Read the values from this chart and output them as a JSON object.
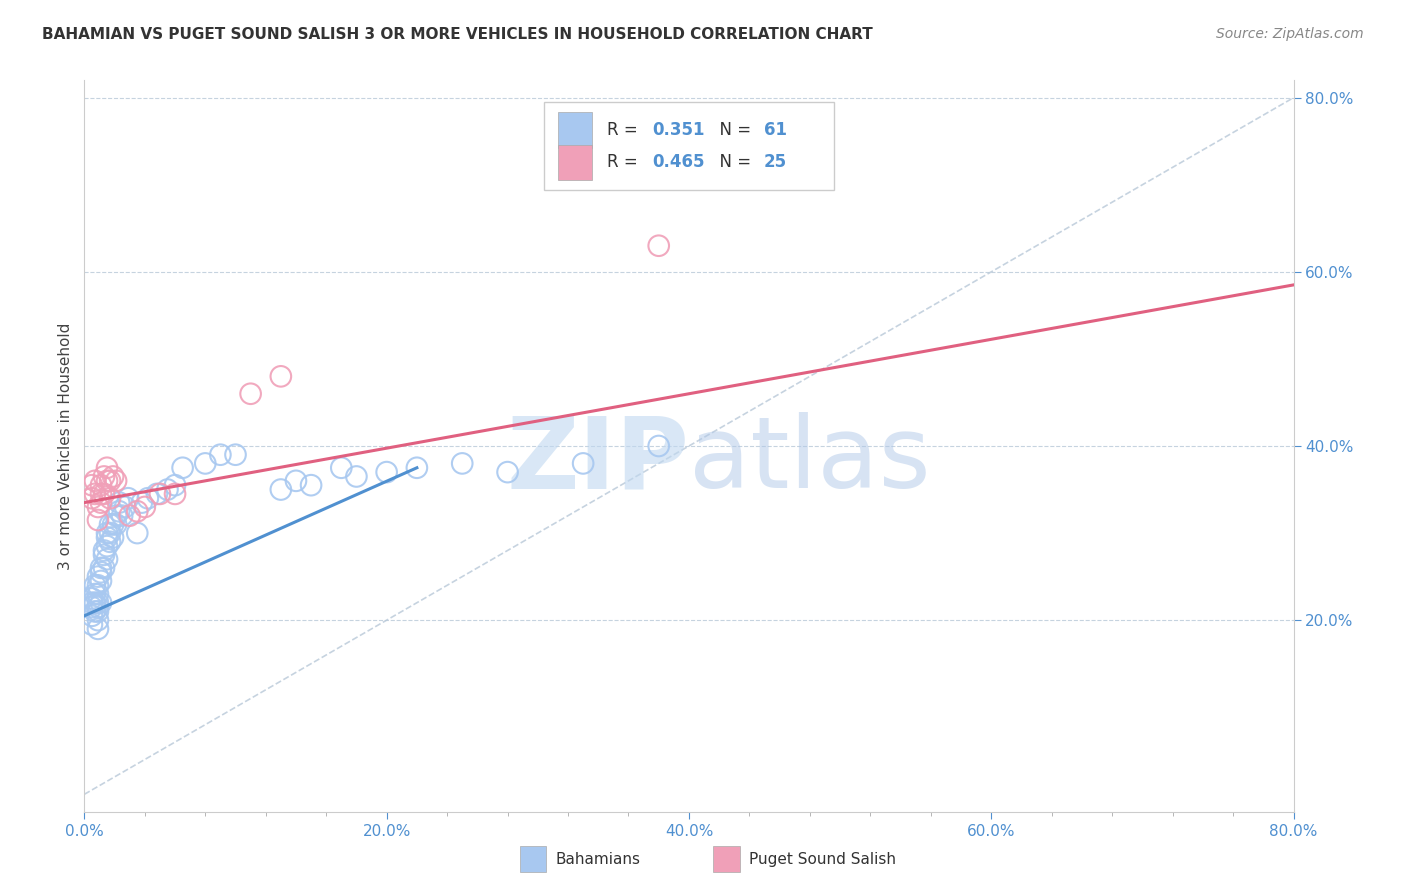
{
  "title": "BAHAMIAN VS PUGET SOUND SALISH 3 OR MORE VEHICLES IN HOUSEHOLD CORRELATION CHART",
  "source": "Source: ZipAtlas.com",
  "ylabel_label": "3 or more Vehicles in Household",
  "watermark": "ZIPatlas",
  "xlim": [
    0.0,
    0.8
  ],
  "ylim": [
    -0.02,
    0.82
  ],
  "xtick_labels": [
    "0.0%",
    "",
    "",
    "",
    "",
    "20.0%",
    "",
    "",
    "",
    "",
    "40.0%",
    "",
    "",
    "",
    "",
    "60.0%",
    "",
    "",
    "",
    "",
    "80.0%"
  ],
  "xtick_values": [
    0.0,
    0.04,
    0.08,
    0.12,
    0.16,
    0.2,
    0.24,
    0.28,
    0.32,
    0.36,
    0.4,
    0.44,
    0.48,
    0.52,
    0.56,
    0.6,
    0.64,
    0.68,
    0.72,
    0.76,
    0.8
  ],
  "ytick_values": [
    0.2,
    0.4,
    0.6,
    0.8
  ],
  "ytick_labels": [
    "20.0%",
    "40.0%",
    "60.0%",
    "80.0%"
  ],
  "legend_label1": "Bahamians",
  "legend_label2": "Puget Sound Salish",
  "color_blue": "#A8C8F0",
  "color_blue_fill": "#A8C8F0",
  "color_pink": "#F0A0B8",
  "color_pink_fill": "#F0A0B8",
  "color_blue_line": "#5090D0",
  "color_pink_line": "#E06080",
  "color_diag": "#B8C8D8",
  "scatter_blue_x": [
    0.005,
    0.005,
    0.005,
    0.005,
    0.005,
    0.007,
    0.007,
    0.007,
    0.007,
    0.009,
    0.009,
    0.009,
    0.009,
    0.009,
    0.009,
    0.009,
    0.009,
    0.011,
    0.011,
    0.011,
    0.011,
    0.013,
    0.013,
    0.013,
    0.015,
    0.015,
    0.015,
    0.015,
    0.017,
    0.017,
    0.017,
    0.019,
    0.019,
    0.021,
    0.021,
    0.023,
    0.023,
    0.025,
    0.027,
    0.029,
    0.035,
    0.038,
    0.042,
    0.048,
    0.055,
    0.06,
    0.065,
    0.08,
    0.09,
    0.1,
    0.13,
    0.14,
    0.15,
    0.17,
    0.18,
    0.2,
    0.22,
    0.25,
    0.28,
    0.33,
    0.38
  ],
  "scatter_blue_y": [
    0.195,
    0.205,
    0.215,
    0.22,
    0.225,
    0.21,
    0.22,
    0.23,
    0.24,
    0.19,
    0.2,
    0.21,
    0.215,
    0.22,
    0.23,
    0.24,
    0.25,
    0.22,
    0.245,
    0.255,
    0.26,
    0.26,
    0.275,
    0.28,
    0.27,
    0.285,
    0.295,
    0.3,
    0.29,
    0.3,
    0.31,
    0.295,
    0.31,
    0.31,
    0.32,
    0.325,
    0.335,
    0.32,
    0.33,
    0.34,
    0.3,
    0.335,
    0.34,
    0.345,
    0.35,
    0.355,
    0.375,
    0.38,
    0.39,
    0.39,
    0.35,
    0.36,
    0.355,
    0.375,
    0.365,
    0.37,
    0.375,
    0.38,
    0.37,
    0.38,
    0.4
  ],
  "scatter_pink_x": [
    0.005,
    0.005,
    0.007,
    0.007,
    0.009,
    0.009,
    0.011,
    0.011,
    0.011,
    0.013,
    0.013,
    0.015,
    0.015,
    0.017,
    0.017,
    0.019,
    0.021,
    0.03,
    0.035,
    0.04,
    0.05,
    0.06,
    0.11,
    0.13,
    0.38
  ],
  "scatter_pink_y": [
    0.34,
    0.355,
    0.345,
    0.36,
    0.315,
    0.33,
    0.335,
    0.345,
    0.355,
    0.345,
    0.365,
    0.36,
    0.375,
    0.34,
    0.36,
    0.365,
    0.36,
    0.32,
    0.325,
    0.33,
    0.345,
    0.345,
    0.46,
    0.48,
    0.63
  ],
  "blue_line_x": [
    0.0,
    0.22
  ],
  "blue_line_y": [
    0.205,
    0.375
  ],
  "pink_line_x": [
    0.0,
    0.8
  ],
  "pink_line_y": [
    0.335,
    0.585
  ],
  "diag_line_x": [
    0.0,
    0.8
  ],
  "diag_line_y": [
    0.0,
    0.8
  ]
}
